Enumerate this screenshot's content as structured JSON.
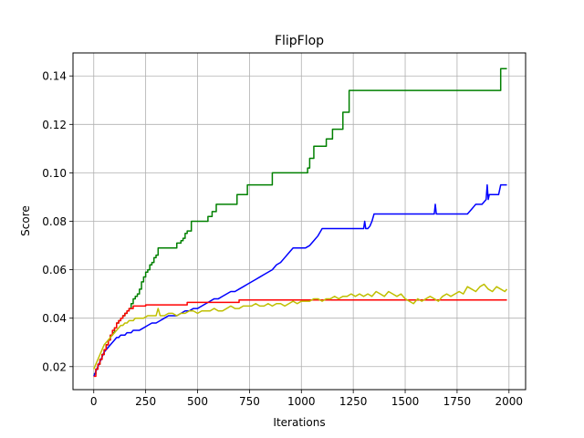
{
  "chart_data": {
    "type": "line",
    "title": "FlipFlop",
    "xlabel": "Iterations",
    "ylabel": "Score",
    "xlim": [
      -100,
      2080
    ],
    "ylim": [
      0.0105,
      0.1495
    ],
    "xticks": [
      0,
      250,
      500,
      750,
      1000,
      1250,
      1500,
      1750,
      2000
    ],
    "xtick_labels": [
      "0",
      "250",
      "500",
      "750",
      "1000",
      "1250",
      "1500",
      "1750",
      "2000"
    ],
    "yticks": [
      0.02,
      0.04,
      0.06,
      0.08,
      0.1,
      0.12,
      0.14
    ],
    "ytick_labels": [
      "0.02",
      "0.04",
      "0.06",
      "0.08",
      "0.10",
      "0.12",
      "0.14"
    ],
    "grid": true,
    "series": [
      {
        "color": "#008000",
        "step": true,
        "x": [
          0,
          10,
          20,
          30,
          40,
          50,
          60,
          70,
          80,
          90,
          100,
          110,
          120,
          130,
          140,
          150,
          160,
          170,
          180,
          190,
          200,
          210,
          220,
          230,
          240,
          250,
          260,
          270,
          280,
          290,
          300,
          310,
          340,
          380,
          400,
          420,
          430,
          440,
          450,
          470,
          520,
          550,
          570,
          590,
          610,
          690,
          720,
          740,
          780,
          860,
          900,
          960,
          1030,
          1040,
          1060,
          1100,
          1120,
          1150,
          1180,
          1200,
          1230,
          1250,
          1300,
          1500,
          1800,
          1940,
          1960,
          1990
        ],
        "y": [
          0.017,
          0.019,
          0.021,
          0.023,
          0.025,
          0.027,
          0.029,
          0.031,
          0.033,
          0.034,
          0.036,
          0.038,
          0.039,
          0.04,
          0.041,
          0.042,
          0.043,
          0.044,
          0.046,
          0.048,
          0.049,
          0.05,
          0.052,
          0.055,
          0.057,
          0.059,
          0.06,
          0.062,
          0.063,
          0.065,
          0.066,
          0.069,
          0.069,
          0.069,
          0.071,
          0.072,
          0.073,
          0.075,
          0.076,
          0.08,
          0.08,
          0.082,
          0.084,
          0.087,
          0.087,
          0.091,
          0.091,
          0.095,
          0.095,
          0.1,
          0.1,
          0.1,
          0.102,
          0.106,
          0.111,
          0.111,
          0.114,
          0.118,
          0.118,
          0.125,
          0.134,
          0.134,
          0.134,
          0.134,
          0.134,
          0.134,
          0.143,
          0.143
        ]
      },
      {
        "color": "#0000ff",
        "step": false,
        "x": [
          0,
          10,
          20,
          30,
          40,
          50,
          60,
          70,
          80,
          90,
          100,
          110,
          120,
          130,
          140,
          150,
          160,
          170,
          180,
          190,
          200,
          220,
          240,
          260,
          280,
          300,
          320,
          340,
          360,
          380,
          400,
          420,
          440,
          460,
          480,
          500,
          520,
          540,
          560,
          580,
          600,
          620,
          640,
          660,
          680,
          700,
          720,
          740,
          760,
          780,
          800,
          820,
          840,
          860,
          880,
          900,
          920,
          940,
          960,
          980,
          1000,
          1020,
          1040,
          1060,
          1080,
          1100,
          1120,
          1140,
          1160,
          1180,
          1200,
          1220,
          1240,
          1260,
          1280,
          1300,
          1305,
          1310,
          1320,
          1330,
          1340,
          1350,
          1360,
          1400,
          1450,
          1500,
          1550,
          1600,
          1640,
          1645,
          1650,
          1700,
          1750,
          1800,
          1820,
          1830,
          1840,
          1850,
          1860,
          1870,
          1880,
          1890,
          1895,
          1900,
          1905,
          1910,
          1920,
          1930,
          1940,
          1950,
          1960,
          1970,
          1980,
          1990
        ],
        "y": [
          0.016,
          0.018,
          0.02,
          0.022,
          0.024,
          0.026,
          0.027,
          0.028,
          0.029,
          0.03,
          0.031,
          0.032,
          0.032,
          0.033,
          0.033,
          0.033,
          0.034,
          0.034,
          0.034,
          0.035,
          0.035,
          0.035,
          0.036,
          0.037,
          0.038,
          0.038,
          0.039,
          0.04,
          0.041,
          0.041,
          0.041,
          0.042,
          0.043,
          0.043,
          0.044,
          0.044,
          0.045,
          0.046,
          0.047,
          0.048,
          0.048,
          0.049,
          0.05,
          0.051,
          0.051,
          0.052,
          0.053,
          0.054,
          0.055,
          0.056,
          0.057,
          0.058,
          0.059,
          0.06,
          0.062,
          0.063,
          0.065,
          0.067,
          0.069,
          0.069,
          0.069,
          0.069,
          0.07,
          0.072,
          0.074,
          0.077,
          0.077,
          0.077,
          0.077,
          0.077,
          0.077,
          0.077,
          0.077,
          0.077,
          0.077,
          0.077,
          0.08,
          0.077,
          0.077,
          0.078,
          0.08,
          0.083,
          0.083,
          0.083,
          0.083,
          0.083,
          0.083,
          0.083,
          0.083,
          0.087,
          0.083,
          0.083,
          0.083,
          0.083,
          0.085,
          0.086,
          0.087,
          0.087,
          0.087,
          0.087,
          0.088,
          0.089,
          0.095,
          0.089,
          0.091,
          0.091,
          0.091,
          0.091,
          0.091,
          0.091,
          0.095,
          0.095,
          0.095,
          0.095
        ]
      },
      {
        "color": "#ff0000",
        "step": true,
        "x": [
          0,
          10,
          20,
          30,
          40,
          50,
          60,
          70,
          80,
          90,
          100,
          110,
          120,
          130,
          140,
          150,
          160,
          170,
          180,
          190,
          200,
          250,
          300,
          400,
          450,
          500,
          700,
          1000,
          1250,
          1500,
          1750,
          1990
        ],
        "y": [
          0.016,
          0.019,
          0.021,
          0.023,
          0.025,
          0.027,
          0.029,
          0.031,
          0.033,
          0.035,
          0.036,
          0.038,
          0.039,
          0.04,
          0.041,
          0.042,
          0.043,
          0.044,
          0.044,
          0.045,
          0.045,
          0.0455,
          0.0455,
          0.0455,
          0.0465,
          0.0465,
          0.0475,
          0.0475,
          0.0475,
          0.0475,
          0.0475,
          0.0475
        ]
      },
      {
        "color": "#bfbf00",
        "step": false,
        "x": [
          0,
          10,
          20,
          30,
          40,
          50,
          60,
          70,
          80,
          90,
          100,
          110,
          120,
          130,
          140,
          150,
          160,
          170,
          180,
          190,
          200,
          220,
          240,
          260,
          280,
          300,
          310,
          320,
          340,
          360,
          380,
          400,
          420,
          440,
          460,
          480,
          500,
          520,
          540,
          560,
          580,
          600,
          620,
          640,
          660,
          680,
          700,
          720,
          740,
          760,
          780,
          800,
          820,
          840,
          860,
          880,
          900,
          920,
          940,
          960,
          980,
          1000,
          1020,
          1040,
          1060,
          1080,
          1100,
          1120,
          1140,
          1160,
          1180,
          1200,
          1220,
          1240,
          1260,
          1280,
          1300,
          1320,
          1340,
          1360,
          1380,
          1400,
          1420,
          1440,
          1460,
          1480,
          1500,
          1520,
          1540,
          1560,
          1580,
          1600,
          1620,
          1640,
          1660,
          1680,
          1700,
          1720,
          1740,
          1760,
          1780,
          1800,
          1820,
          1840,
          1860,
          1880,
          1900,
          1920,
          1940,
          1960,
          1980,
          1990
        ],
        "y": [
          0.019,
          0.021,
          0.023,
          0.025,
          0.027,
          0.029,
          0.03,
          0.031,
          0.032,
          0.033,
          0.034,
          0.035,
          0.036,
          0.037,
          0.037,
          0.038,
          0.038,
          0.039,
          0.039,
          0.039,
          0.04,
          0.04,
          0.04,
          0.041,
          0.041,
          0.041,
          0.044,
          0.041,
          0.041,
          0.042,
          0.042,
          0.041,
          0.042,
          0.042,
          0.043,
          0.043,
          0.042,
          0.043,
          0.043,
          0.043,
          0.044,
          0.043,
          0.043,
          0.044,
          0.045,
          0.044,
          0.044,
          0.045,
          0.045,
          0.045,
          0.046,
          0.045,
          0.045,
          0.046,
          0.045,
          0.046,
          0.046,
          0.045,
          0.046,
          0.047,
          0.046,
          0.047,
          0.047,
          0.047,
          0.048,
          0.048,
          0.047,
          0.048,
          0.048,
          0.049,
          0.048,
          0.049,
          0.049,
          0.05,
          0.049,
          0.05,
          0.049,
          0.05,
          0.049,
          0.051,
          0.05,
          0.049,
          0.051,
          0.05,
          0.049,
          0.05,
          0.048,
          0.047,
          0.046,
          0.048,
          0.047,
          0.048,
          0.049,
          0.048,
          0.047,
          0.049,
          0.05,
          0.049,
          0.05,
          0.051,
          0.05,
          0.053,
          0.052,
          0.051,
          0.053,
          0.054,
          0.052,
          0.051,
          0.053,
          0.052,
          0.051,
          0.052
        ]
      }
    ]
  }
}
